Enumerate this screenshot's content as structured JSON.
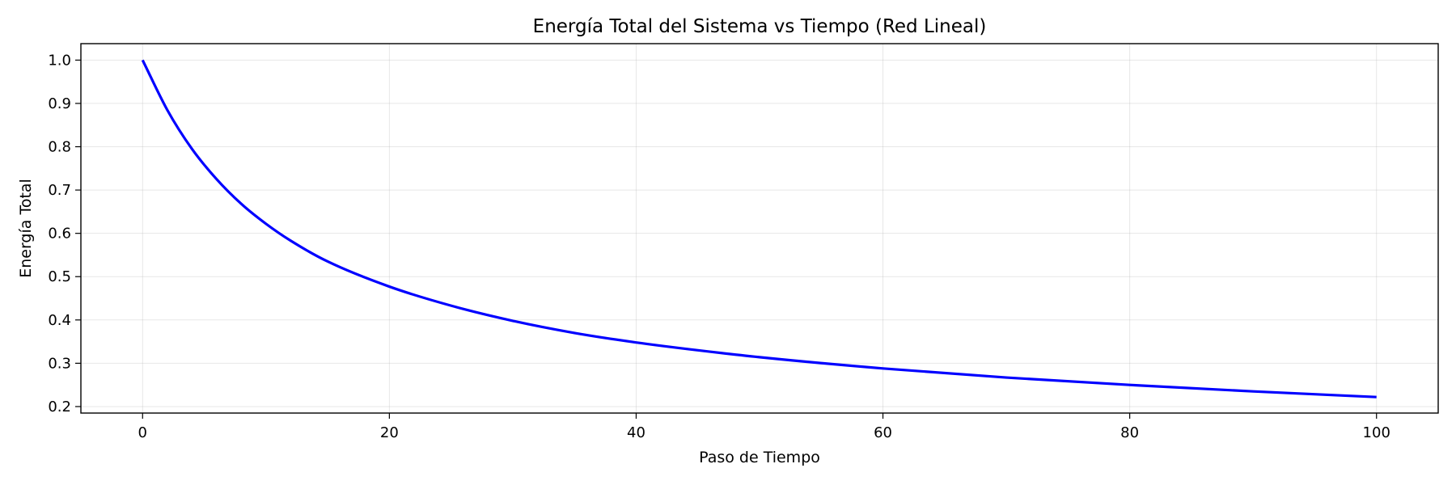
{
  "chart_data": {
    "type": "line",
    "title": "Energía Total del Sistema vs Tiempo (Red Lineal)",
    "xlabel": "Paso de Tiempo",
    "ylabel": "Energía Total",
    "xlim": [
      -5,
      105
    ],
    "ylim": [
      0.185,
      1.038
    ],
    "xticks": [
      0,
      20,
      40,
      60,
      80,
      100
    ],
    "xtick_labels": [
      "0",
      "20",
      "40",
      "60",
      "80",
      "100"
    ],
    "yticks": [
      0.2,
      0.3,
      0.4,
      0.5,
      0.6,
      0.7,
      0.8,
      0.9,
      1.0
    ],
    "ytick_labels": [
      "0.2",
      "0.3",
      "0.4",
      "0.5",
      "0.6",
      "0.7",
      "0.8",
      "0.9",
      "1.0"
    ],
    "grid": true,
    "series": [
      {
        "color": "#0000ff",
        "x": [
          0,
          2,
          4,
          6,
          8,
          10,
          12,
          15,
          20,
          25,
          30,
          35,
          40,
          45,
          50,
          60,
          70,
          80,
          90,
          100
        ],
        "y": [
          1.0,
          0.885,
          0.795,
          0.725,
          0.668,
          0.622,
          0.583,
          0.535,
          0.477,
          0.433,
          0.398,
          0.37,
          0.348,
          0.33,
          0.314,
          0.288,
          0.267,
          0.25,
          0.235,
          0.222
        ]
      }
    ]
  }
}
